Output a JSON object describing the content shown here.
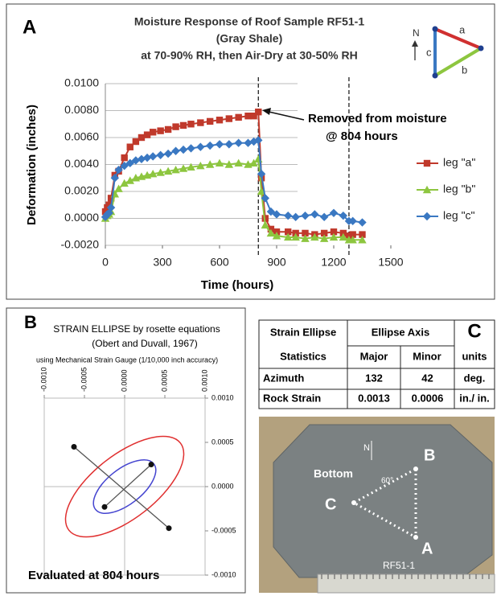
{
  "panels": [
    "A",
    "B",
    "C"
  ],
  "chart_data": [
    {
      "type": "line",
      "title": [
        "Moisture Response of Roof Sample RF51-1",
        "(Gray Shale)",
        "at 70-90% RH, then Air-Dry at 30-50% RH"
      ],
      "x_label": "Time  (hours)",
      "y_label": "Deformation (inches)",
      "x": [
        0,
        10,
        20,
        30,
        50,
        70,
        100,
        130,
        160,
        190,
        220,
        250,
        290,
        330,
        370,
        410,
        450,
        500,
        550,
        600,
        650,
        700,
        750,
        780,
        804,
        820,
        840,
        870,
        900,
        960,
        1000,
        1050,
        1100,
        1150,
        1200,
        1250,
        1280,
        1300,
        1350
      ],
      "series": [
        {
          "name": "leg \"a\"",
          "color": "#c0392b",
          "marker": "square",
          "values": [
            0.0005,
            0.0008,
            0.001,
            0.0015,
            0.0032,
            0.0035,
            0.0045,
            0.0053,
            0.0057,
            0.006,
            0.0062,
            0.0064,
            0.0065,
            0.0066,
            0.0068,
            0.0069,
            0.007,
            0.0071,
            0.0072,
            0.0073,
            0.0074,
            0.0075,
            0.0076,
            0.0076,
            0.0079,
            0.003,
            0.0,
            -0.0008,
            -0.001,
            -0.001,
            -0.0011,
            -0.0011,
            -0.0012,
            -0.0011,
            -0.001,
            -0.0011,
            -0.0013,
            -0.0012,
            -0.0012
          ]
        },
        {
          "name": "leg \"b\"",
          "color": "#8dc63f",
          "marker": "triangle",
          "values": [
            0,
            0.0002,
            0.0003,
            0.0005,
            0.0018,
            0.0022,
            0.0026,
            0.0028,
            0.003,
            0.0031,
            0.0032,
            0.0033,
            0.0034,
            0.0035,
            0.0036,
            0.0037,
            0.0038,
            0.0039,
            0.004,
            0.0041,
            0.004,
            0.0041,
            0.004,
            0.0041,
            0.0044,
            0.002,
            -0.0005,
            -0.0011,
            -0.0013,
            -0.0014,
            -0.0014,
            -0.0015,
            -0.0014,
            -0.0015,
            -0.0014,
            -0.0014,
            -0.0016,
            -0.0016,
            -0.0016
          ]
        },
        {
          "name": "leg \"c\"",
          "color": "#3a78c2",
          "marker": "diamond",
          "values": [
            0.0001,
            0.0003,
            0.0004,
            0.0008,
            0.003,
            0.0036,
            0.0039,
            0.0041,
            0.0043,
            0.0044,
            0.0045,
            0.0046,
            0.0047,
            0.0048,
            0.005,
            0.0051,
            0.0052,
            0.0053,
            0.0054,
            0.0055,
            0.0055,
            0.0056,
            0.0056,
            0.0057,
            0.0058,
            0.0033,
            0.0015,
            0.0005,
            0.0003,
            0.0002,
            0.0001,
            0.0002,
            0.0003,
            0.0001,
            0.0004,
            0.0002,
            -0.0002,
            -0.0002,
            -0.0003
          ]
        }
      ],
      "xlim": [
        0,
        1500
      ],
      "xticks": [
        0,
        300,
        600,
        900,
        1200,
        1500
      ],
      "ylim": [
        -0.002,
        0.01
      ],
      "yticks": [
        {
          "value": -0.002,
          "label": "-0.0020"
        },
        {
          "value": 0,
          "label": "0.0000"
        },
        {
          "value": 0.002,
          "label": "0.0020"
        },
        {
          "value": 0.004,
          "label": "0.0040"
        },
        {
          "value": 0.006,
          "label": "0.0060"
        },
        {
          "value": 0.008,
          "label": "0.0080"
        },
        {
          "value": 0.01,
          "label": "0.0100"
        }
      ],
      "grid": true,
      "legend": "right",
      "vlines": [
        804,
        1280
      ],
      "annotation": [
        "Removed from moisture",
        "@ 804 hours"
      ],
      "orientation": {
        "north": "N",
        "legs": [
          "a",
          "b",
          "c"
        ]
      }
    },
    {
      "type": "ellipse",
      "title": "STRAIN ELLIPSE by rosette equations",
      "subtitle": "(Obert and Duvall, 1967)",
      "note": "using Mechanical Strain Gauge (1/10,000 inch accuracy)",
      "footer": "Evaluated at 804 hours",
      "xlim": [
        -0.001,
        0.001
      ],
      "ylim": [
        -0.001,
        0.001
      ],
      "xticks": [
        {
          "value": -0.001,
          "label": "-0.0010"
        },
        {
          "value": -0.0005,
          "label": "-0.0005"
        },
        {
          "value": 0,
          "label": "0.0000"
        },
        {
          "value": 0.0005,
          "label": "0.0005"
        },
        {
          "value": 0.001,
          "label": "0.0010"
        }
      ],
      "yticks": [
        {
          "value": -0.001,
          "label": "-0.0010"
        },
        {
          "value": -0.0005,
          "label": "-0.0005"
        },
        {
          "value": 0,
          "label": "0.0000"
        },
        {
          "value": 0.0005,
          "label": "0.0005"
        },
        {
          "value": 0.001,
          "label": "0.0010"
        }
      ],
      "points": {
        "x": [
          -0.00063,
          0.00055,
          0.00033,
          -0.00025
        ],
        "y": [
          0.00045,
          -0.00047,
          0.00025,
          -0.00023
        ]
      },
      "ellipses": [
        {
          "color": "#e03030",
          "rx": 0.00088,
          "ry": 0.00036,
          "angle": -38
        },
        {
          "color": "#4545d0",
          "rx": 0.00046,
          "ry": 0.0002,
          "angle": -38
        }
      ]
    }
  ],
  "table": {
    "header": [
      [
        "Strain Ellipse",
        "Ellipse Axis",
        "C"
      ],
      [
        "Statistics",
        "Major",
        "Minor",
        "units"
      ]
    ],
    "rows": [
      [
        "Azimuth",
        "132",
        "42",
        "deg."
      ],
      [
        "Rock Strain",
        "0.0013",
        "0.0006",
        "in./ in."
      ]
    ]
  },
  "photo": {
    "labels": {
      "bottom": "Bottom",
      "north": "N",
      "a": "A",
      "b": "B",
      "c": "C",
      "angle": "60°",
      "sample": "RF51-1"
    }
  }
}
